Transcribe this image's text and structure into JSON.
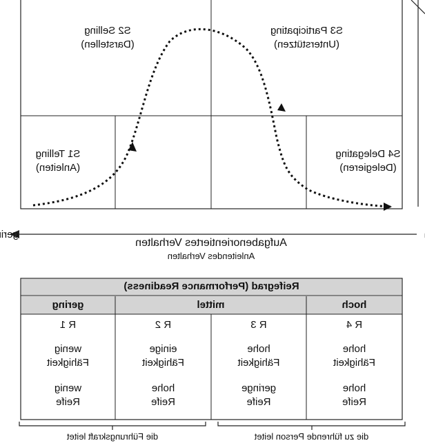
{
  "quadrants": {
    "s1": {
      "title": "S1 Telling",
      "sub": "(Anleiten)"
    },
    "s2": {
      "title": "S2 Selling",
      "sub": "(Darstellen)"
    },
    "s3": {
      "title": "S3 Participating",
      "sub": "(Unterstützen)"
    },
    "s4": {
      "title": "S4 Delegating",
      "sub": "(Delegieren)"
    }
  },
  "axis": {
    "low": "hoch",
    "high": "gering",
    "title": "Aufgabenorientiertes Verhalten",
    "subtitle": "Anleitendes Verhalten"
  },
  "table": {
    "title": "Reifegrad (Performance Readiness)",
    "levels": [
      "hoch",
      "mittel",
      "gering"
    ],
    "cols": [
      {
        "code": "R 4",
        "ability": [
          "hohe",
          "Fähigkeit"
        ],
        "maturity": [
          "hohe",
          "Reife"
        ]
      },
      {
        "code": "R 3",
        "ability": [
          "hohe",
          "Fähigkeit"
        ],
        "maturity": [
          "geringe",
          "Reife"
        ]
      },
      {
        "code": "R 2",
        "ability": [
          "einige",
          "Fähigkeit"
        ],
        "maturity": [
          "hohe",
          "Reife"
        ]
      },
      {
        "code": "R 1",
        "ability": [
          "wenig",
          "Fähigkeit"
        ],
        "maturity": [
          "wenig",
          "Reife"
        ]
      }
    ],
    "brace_right": "die Führungskraft leitet",
    "brace_left": "die zu führende Person leitet"
  }
}
